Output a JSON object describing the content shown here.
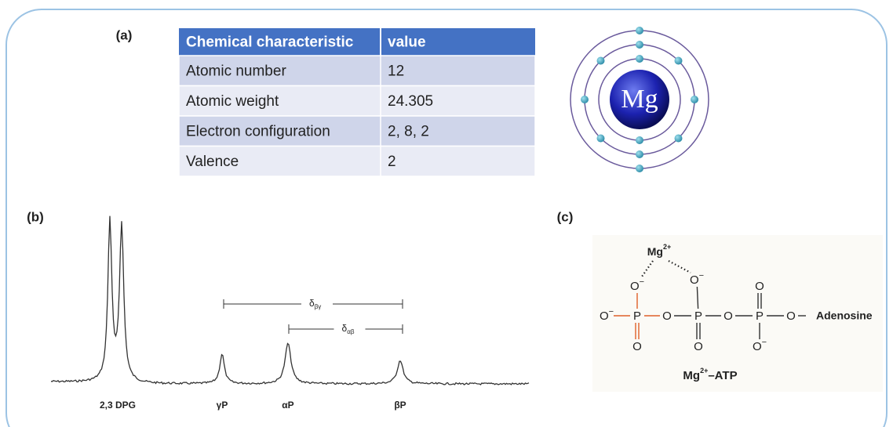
{
  "panels": {
    "a": "(a)",
    "b": "(b)",
    "c": "(c)"
  },
  "table": {
    "header": [
      "Chemical characteristic",
      "value"
    ],
    "rows": [
      [
        "Atomic number",
        "12"
      ],
      [
        "Atomic weight",
        "24.305"
      ],
      [
        "Electron configuration",
        "2, 8, 2"
      ],
      [
        "Valence",
        "2"
      ]
    ]
  },
  "atom": {
    "symbol": "Mg"
  },
  "spectrum": {
    "peaks": [
      "2,3 DPG",
      "γP",
      "αP",
      "βP"
    ],
    "couplings": [
      {
        "symbol": "δ",
        "subscript": "βγ"
      },
      {
        "symbol": "δ",
        "subscript": "αβ"
      }
    ]
  },
  "structure": {
    "ion": {
      "symbol": "Mg",
      "charge": "2+"
    },
    "atoms": [
      {
        "el": "O",
        "charge": "−"
      },
      {
        "el": "O",
        "charge": "−"
      },
      {
        "el": "O"
      },
      {
        "el": "O",
        "charge": "−"
      },
      {
        "el": "P"
      },
      {
        "el": "O"
      },
      {
        "el": "P"
      },
      {
        "el": "O"
      },
      {
        "el": "P"
      },
      {
        "el": "O"
      },
      {
        "el": "O"
      },
      {
        "el": "O"
      },
      {
        "el": "O",
        "charge": "−"
      }
    ],
    "group": "Adenosine",
    "caption": [
      "Mg",
      "2+",
      "–ATP"
    ]
  }
}
